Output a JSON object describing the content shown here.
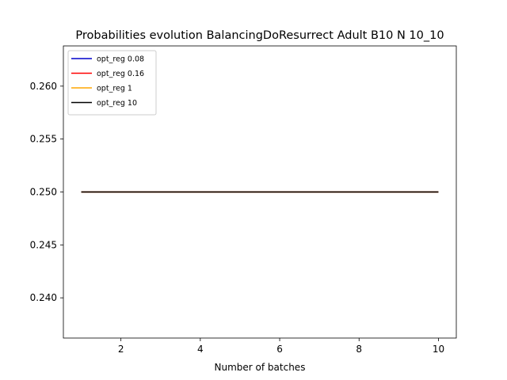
{
  "chart_data": {
    "type": "line",
    "title": "Probabilities evolution BalancingDoResurrect Adult B10 N 10_10",
    "xlabel": "Number of batches",
    "ylabel": "",
    "x": [
      1,
      2,
      3,
      4,
      5,
      6,
      7,
      8,
      9,
      10
    ],
    "xlim": [
      0.55,
      10.45
    ],
    "ylim": [
      0.2362,
      0.2638
    ],
    "xticks": [
      2,
      4,
      6,
      8,
      10
    ],
    "yticks": [
      0.24,
      0.245,
      0.25,
      0.255,
      0.26
    ],
    "ytick_labels": [
      "0.240",
      "0.245",
      "0.250",
      "0.255",
      "0.260"
    ],
    "grid": false,
    "legend_position": "top-left",
    "series": [
      {
        "name": "opt_reg 0.08",
        "color": "#0000cc",
        "values": [
          0.25,
          0.25,
          0.25,
          0.25,
          0.25,
          0.25,
          0.25,
          0.25,
          0.25,
          0.25
        ]
      },
      {
        "name": "opt_reg 0.16",
        "color": "#ff0000",
        "values": [
          0.25,
          0.25,
          0.25,
          0.25,
          0.25,
          0.25,
          0.25,
          0.25,
          0.25,
          0.25
        ]
      },
      {
        "name": "opt_reg 1",
        "color": "#ffa500",
        "values": [
          0.25,
          0.25,
          0.25,
          0.25,
          0.25,
          0.25,
          0.25,
          0.25,
          0.25,
          0.25
        ]
      },
      {
        "name": "opt_reg 10",
        "color": "#000000",
        "values": [
          0.25,
          0.25,
          0.25,
          0.25,
          0.25,
          0.25,
          0.25,
          0.25,
          0.25,
          0.25
        ]
      }
    ]
  }
}
